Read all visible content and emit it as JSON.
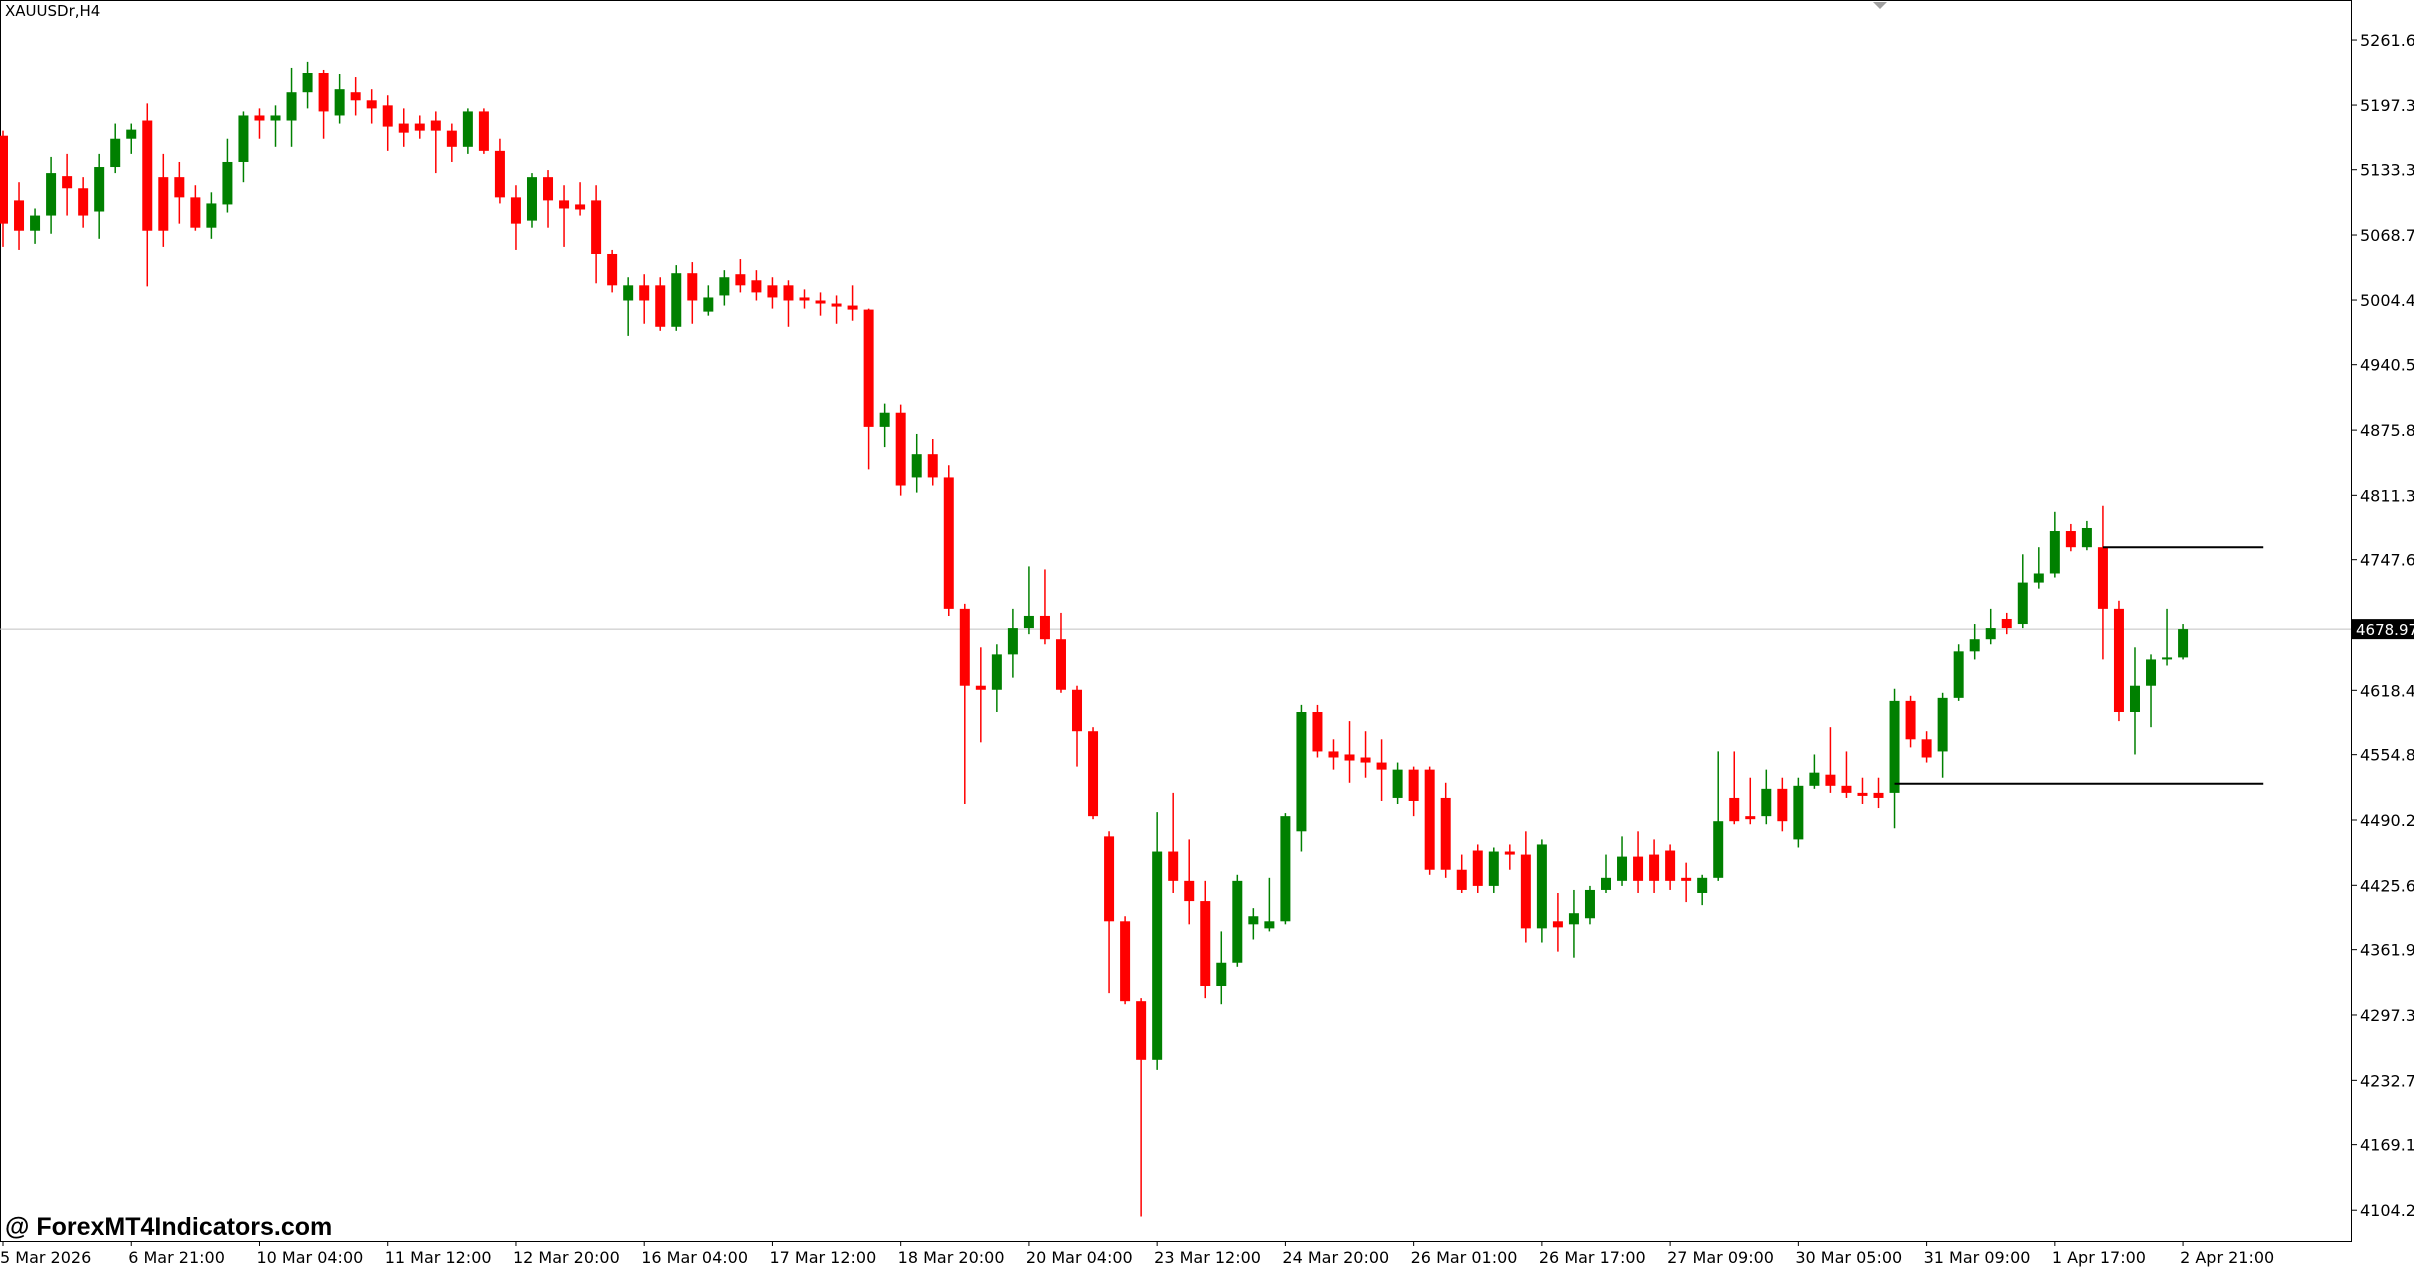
{
  "chart_data": {
    "type": "candlestick",
    "title": "XAUUSDr,H4",
    "watermark": "@ ForexMT4Indicators.com",
    "up_color": "#008000",
    "down_color": "#ff0000",
    "categories": [
      "5 Mar 2026",
      null,
      null,
      null,
      null,
      null,
      null,
      null,
      "6 Mar 21:00",
      null,
      null,
      null,
      null,
      null,
      null,
      null,
      "10 Mar 04:00",
      null,
      null,
      null,
      null,
      null,
      null,
      null,
      "11 Mar 12:00",
      null,
      null,
      null,
      null,
      null,
      null,
      null,
      "12 Mar 20:00",
      null,
      null,
      null,
      null,
      null,
      null,
      null,
      "16 Mar 04:00",
      null,
      null,
      null,
      null,
      null,
      null,
      null,
      "17 Mar 12:00",
      null,
      null,
      null,
      null,
      null,
      null,
      null,
      "18 Mar 20:00",
      null,
      null,
      null,
      null,
      null,
      null,
      null,
      "20 Mar 04:00",
      null,
      null,
      null,
      null,
      null,
      null,
      null,
      "23 Mar 12:00",
      null,
      null,
      null,
      null,
      null,
      null,
      null,
      "24 Mar 20:00",
      null,
      null,
      null,
      null,
      null,
      null,
      null,
      "26 Mar 01:00",
      null,
      null,
      null,
      null,
      null,
      null,
      null,
      "26 Mar 17:00",
      null,
      null,
      null,
      null,
      null,
      null,
      null,
      "27 Mar 09:00",
      null,
      null,
      null,
      null,
      null,
      null,
      null,
      "30 Mar 05:00",
      null,
      null,
      null,
      null,
      null,
      null,
      null,
      "31 Mar 09:00",
      null,
      null,
      null,
      null,
      null,
      null,
      null,
      "1 Apr 17:00",
      null,
      null,
      null,
      null,
      null,
      null,
      null,
      "2 Apr 21:00"
    ],
    "open": [
      5167,
      5103,
      5073,
      5088,
      5127,
      5115,
      5092,
      5136,
      5164,
      5182,
      5126,
      5126,
      5106,
      5076,
      5099,
      5141,
      5187,
      5182,
      5182,
      5210,
      5229,
      5187,
      5210,
      5202,
      5197,
      5179,
      5179,
      5182,
      5172,
      5156,
      5191,
      5152,
      5106,
      5083,
      5126,
      5103,
      5099,
      5103,
      5050,
      5004,
      5019,
      5019,
      4978,
      5031,
      4993,
      5009,
      5030,
      5024,
      5019,
      5019,
      5007,
      5004,
      5001,
      4999,
      4995,
      4879,
      4893,
      4829,
      4852,
      4829,
      4699,
      4623,
      4619,
      4654,
      4680,
      4692,
      4669,
      4619,
      4578,
      4474,
      4390,
      4311,
      4253,
      4459,
      4430,
      4410,
      4326,
      4349,
      4387,
      4383,
      4390,
      4479,
      4597,
      4558,
      4555,
      4552,
      4547,
      4512,
      4540,
      4540,
      4512,
      4441,
      4460,
      4425,
      4459,
      4456,
      4383,
      4390,
      4387,
      4393,
      4421,
      4430,
      4454,
      4456,
      4460,
      4433,
      4418,
      4433,
      4512,
      4494,
      4494,
      4521,
      4471,
      4524,
      4535,
      4524,
      4517,
      4517,
      4517,
      4608,
      4570,
      4558,
      4611,
      4657,
      4669,
      4689,
      4684,
      4725,
      4734,
      4776,
      4760,
      4760,
      4699,
      4597,
      4623,
      4649,
      4651
    ],
    "high": [
      5172,
      5121,
      5095,
      5146,
      5149,
      5126,
      5149,
      5179,
      5179,
      5199,
      5149,
      5141,
      5118,
      5111,
      5164,
      5191,
      5194,
      5197,
      5234,
      5240,
      5232,
      5228,
      5225,
      5213,
      5207,
      5194,
      5187,
      5191,
      5179,
      5194,
      5194,
      5164,
      5118,
      5130,
      5133,
      5118,
      5121,
      5118,
      5054,
      5027,
      5030,
      5027,
      5039,
      5042,
      5019,
      5034,
      5045,
      5034,
      5027,
      5024,
      5015,
      5012,
      5009,
      5019,
      4996,
      4902,
      4901,
      4872,
      4867,
      4841,
      4704,
      4661,
      4664,
      4699,
      4741,
      4738,
      4695,
      4623,
      4582,
      4479,
      4395,
      4314,
      4498,
      4517,
      4471,
      4430,
      4380,
      4436,
      4403,
      4433,
      4497,
      4604,
      4604,
      4570,
      4588,
      4578,
      4570,
      4547,
      4543,
      4543,
      4527,
      4456,
      4466,
      4463,
      4466,
      4479,
      4471,
      4418,
      4421,
      4425,
      4456,
      4474,
      4479,
      4471,
      4466,
      4448,
      4436,
      4558,
      4558,
      4532,
      4540,
      4532,
      4532,
      4555,
      4582,
      4558,
      4532,
      4532,
      4620,
      4613,
      4578,
      4616,
      4664,
      4684,
      4699,
      4695,
      4753,
      4760,
      4795,
      4783,
      4786,
      4801,
      4707,
      4661,
      4654,
      4699,
      4684
    ],
    "low": [
      5057,
      5054,
      5060,
      5070,
      5088,
      5076,
      5065,
      5130,
      5149,
      5018,
      5057,
      5080,
      5073,
      5065,
      5091,
      5121,
      5164,
      5156,
      5156,
      5194,
      5164,
      5179,
      5187,
      5179,
      5152,
      5156,
      5164,
      5130,
      5141,
      5149,
      5149,
      5100,
      5054,
      5076,
      5076,
      5057,
      5088,
      5021,
      5012,
      4969,
      4981,
      4974,
      4974,
      4981,
      4989,
      4999,
      5012,
      5004,
      4996,
      4978,
      4996,
      4989,
      4981,
      4984,
      4837,
      4859,
      4811,
      4814,
      4821,
      4692,
      4506,
      4567,
      4597,
      4631,
      4674,
      4664,
      4616,
      4543,
      4491,
      4319,
      4308,
      4098,
      4243,
      4418,
      4387,
      4314,
      4308,
      4345,
      4372,
      4380,
      4387,
      4459,
      4552,
      4540,
      4527,
      4532,
      4509,
      4506,
      4494,
      4436,
      4433,
      4418,
      4418,
      4418,
      4441,
      4369,
      4369,
      4360,
      4354,
      4387,
      4418,
      4425,
      4418,
      4418,
      4421,
      4409,
      4406,
      4430,
      4486,
      4486,
      4486,
      4479,
      4463,
      4521,
      4517,
      4512,
      4506,
      4502,
      4482,
      4562,
      4547,
      4532,
      4608,
      4649,
      4664,
      4674,
      4680,
      4719,
      4730,
      4756,
      4757,
      4649,
      4588,
      4555,
      4582,
      4643,
      4649
    ],
    "close": [
      5080,
      5073,
      5088,
      5130,
      5115,
      5088,
      5136,
      5164,
      5173,
      5073,
      5073,
      5106,
      5076,
      5100,
      5141,
      5187,
      5182,
      5187,
      5210,
      5229,
      5191,
      5213,
      5202,
      5194,
      5176,
      5170,
      5172,
      5172,
      5156,
      5191,
      5152,
      5106,
      5080,
      5126,
      5103,
      5095,
      5094,
      5050,
      5019,
      5019,
      5004,
      4978,
      5031,
      5004,
      5007,
      5027,
      5019,
      5012,
      5007,
      5004,
      5004,
      5001,
      4998,
      4995,
      4879,
      4893,
      4821,
      4852,
      4829,
      4699,
      4623,
      4619,
      4654,
      4680,
      4692,
      4669,
      4619,
      4578,
      4494,
      4390,
      4311,
      4253,
      4459,
      4430,
      4410,
      4326,
      4349,
      4430,
      4395,
      4390,
      4494,
      4597,
      4558,
      4552,
      4549,
      4547,
      4540,
      4540,
      4509,
      4441,
      4441,
      4421,
      4425,
      4459,
      4456,
      4383,
      4466,
      4384,
      4398,
      4421,
      4433,
      4454,
      4430,
      4430,
      4430,
      4430,
      4433,
      4489,
      4489,
      4491,
      4521,
      4489,
      4524,
      4537,
      4524,
      4517,
      4514,
      4512,
      4608,
      4570,
      4552,
      4611,
      4657,
      4669,
      4680,
      4680,
      4725,
      4734,
      4776,
      4760,
      4779,
      4699,
      4597,
      4623,
      4649,
      4651,
      4679
    ],
    "ylim": [
      4073.8,
      5301.2
    ],
    "yticks": [
      {
        "value": 5261.6,
        "label": "5261.60"
      },
      {
        "value": 5197.3,
        "label": "5197.30"
      },
      5133.35,
      {
        "value": 5068.75,
        "label": "5068.75"
      },
      {
        "value": 5004.45,
        "label": "5004.45"
      },
      {
        "value": 4940.5,
        "label": "4940.50"
      },
      {
        "value": 4875.8,
        "label": "4875.80"
      },
      {
        "value": 4811.3,
        "label": "4811.30"
      },
      4747.65,
      4618.45,
      {
        "value": 4554.8,
        "label": "4554.80"
      },
      {
        "value": 4490.2,
        "label": "4490.20"
      },
      {
        "value": 4425.6,
        "label": "4425.60"
      },
      4361.95,
      4297.35,
      {
        "value": 4232.7,
        "label": "4232.70"
      },
      {
        "value": 4169.1,
        "label": "4169.10"
      },
      4104.25
    ],
    "last_price": 4678.97,
    "hlines": [
      {
        "value": 4760,
        "from": 131,
        "to": 141
      },
      {
        "value": 4526,
        "from": 118,
        "to": 141
      }
    ]
  }
}
